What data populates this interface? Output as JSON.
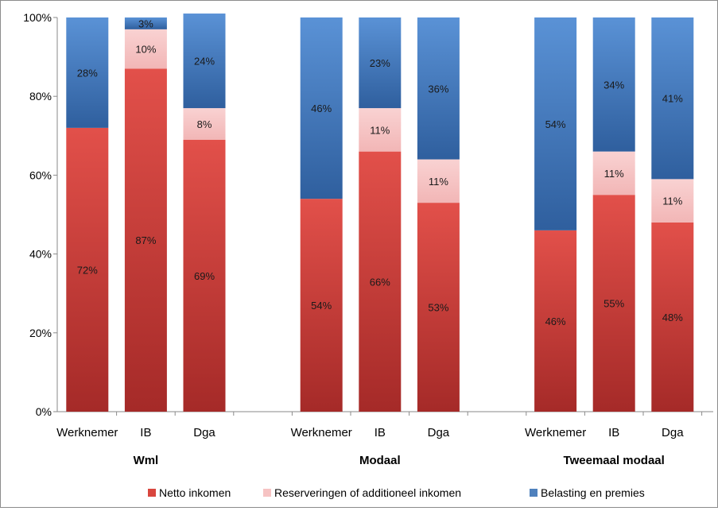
{
  "chart_data": {
    "type": "bar",
    "stacked": "percent",
    "groups": [
      {
        "label": "Wml",
        "categories": [
          "Werknemer",
          "IB",
          "Dga"
        ]
      },
      {
        "label": "Modaal",
        "categories": [
          "Werknemer",
          "IB",
          "Dga"
        ]
      },
      {
        "label": "Tweemaal modaal",
        "categories": [
          "Werknemer",
          "IB",
          "Dga"
        ]
      }
    ],
    "series": [
      {
        "name": "Netto inkomen",
        "color": "#d9463e",
        "values": [
          72,
          87,
          69,
          54,
          66,
          53,
          46,
          55,
          48
        ],
        "labels": [
          "72%",
          "87%",
          "69%",
          "54%",
          "66%",
          "53%",
          "46%",
          "55%",
          "48%"
        ]
      },
      {
        "name": "Reserveringen of additioneel inkomen",
        "color": "#f6c3c3",
        "values": [
          0,
          10,
          8,
          0,
          11,
          11,
          0,
          11,
          11
        ],
        "labels": [
          "",
          "10%",
          "8%",
          "",
          "11%",
          "11%",
          "",
          "11%",
          "11%"
        ]
      },
      {
        "name": "Belasting en premies",
        "color": "#4f81bd",
        "values": [
          28,
          3,
          24,
          46,
          23,
          36,
          54,
          34,
          41
        ],
        "labels": [
          "28%",
          "3%",
          "24%",
          "46%",
          "23%",
          "36%",
          "54%",
          "34%",
          "41%"
        ]
      }
    ],
    "ylim": [
      0,
      100
    ],
    "yticks": [
      "0%",
      "20%",
      "40%",
      "60%",
      "80%",
      "100%"
    ],
    "legend": "bottom",
    "grid": false
  }
}
